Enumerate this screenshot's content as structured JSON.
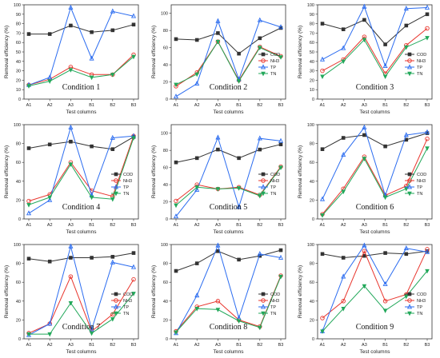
{
  "chart_data": [
    {
      "type": "line",
      "title": "Condition 1",
      "xlabel": "Test columns",
      "ylabel": "Removal efficiency (%)",
      "ylim": [
        0,
        100
      ],
      "yticks": [
        0,
        10,
        20,
        30,
        40,
        50,
        60,
        70,
        80,
        90,
        100
      ],
      "categories": [
        "A1",
        "A2",
        "A3",
        "B1",
        "B2",
        "B3"
      ],
      "legend_position": "none",
      "series": [
        {
          "name": "COD",
          "values": [
            69,
            69,
            78,
            71,
            73,
            79
          ]
        },
        {
          "name": "NH3",
          "values": [
            15,
            21,
            34,
            26,
            26,
            47
          ]
        },
        {
          "name": "TP",
          "values": [
            15,
            23,
            97,
            43,
            93,
            88
          ]
        },
        {
          "name": "TN",
          "values": [
            14,
            19,
            31,
            23,
            26,
            45
          ]
        }
      ]
    },
    {
      "type": "line",
      "title": "Condition 2",
      "xlabel": "Test columns",
      "ylabel": "Removal efficiency (%)",
      "ylim": [
        0,
        110
      ],
      "yticks": [
        0,
        20,
        40,
        60,
        80,
        100
      ],
      "categories": [
        "A1",
        "A2",
        "A3",
        "B1",
        "B2",
        "B3"
      ],
      "legend_position": "right",
      "series": [
        {
          "name": "COD",
          "values": [
            70,
            69,
            77,
            53,
            71,
            83
          ]
        },
        {
          "name": "NH3",
          "values": [
            15,
            31,
            67,
            22,
            61,
            50
          ]
        },
        {
          "name": "TP",
          "values": [
            3,
            18,
            91,
            23,
            92,
            84
          ]
        },
        {
          "name": "TN",
          "values": [
            17,
            29,
            67,
            21,
            60,
            49
          ]
        }
      ]
    },
    {
      "type": "line",
      "title": "Condition 3",
      "xlabel": "Test columns",
      "ylabel": "Removal efficiency (%)",
      "ylim": [
        0,
        100
      ],
      "yticks": [
        0,
        10,
        20,
        30,
        40,
        50,
        60,
        70,
        80,
        90,
        100
      ],
      "categories": [
        "A1",
        "A2",
        "A3",
        "B1",
        "B2",
        "B3"
      ],
      "legend_position": "right",
      "series": [
        {
          "name": "COD",
          "values": [
            80,
            74,
            84,
            58,
            78,
            90
          ]
        },
        {
          "name": "NH3",
          "values": [
            30,
            42,
            66,
            27,
            57,
            75
          ]
        },
        {
          "name": "TP",
          "values": [
            42,
            54,
            98,
            35,
            96,
            97
          ]
        },
        {
          "name": "TN",
          "values": [
            24,
            40,
            63,
            24,
            55,
            65
          ]
        }
      ]
    },
    {
      "type": "line",
      "title": "Condition 4",
      "xlabel": "Test columns",
      "ylabel": "Removal efficiency (%)",
      "ylim": [
        0,
        100
      ],
      "yticks": [
        0,
        20,
        40,
        60,
        80,
        100
      ],
      "categories": [
        "A1",
        "A2",
        "A3",
        "B1",
        "B2",
        "B3"
      ],
      "legend_position": "right",
      "series": [
        {
          "name": "COD",
          "values": [
            75,
            79,
            82,
            77,
            74,
            87
          ]
        },
        {
          "name": "NH3",
          "values": [
            19,
            26,
            60,
            30,
            24,
            88
          ]
        },
        {
          "name": "TP",
          "values": [
            6,
            20,
            97,
            25,
            86,
            88
          ]
        },
        {
          "name": "TN",
          "values": [
            15,
            23,
            58,
            23,
            21,
            86
          ]
        }
      ]
    },
    {
      "type": "line",
      "title": "Condition 5",
      "xlabel": "Test columns",
      "ylabel": "Removal efficiency (%)",
      "ylim": [
        0,
        110
      ],
      "yticks": [
        0,
        20,
        40,
        60,
        80,
        100
      ],
      "categories": [
        "A1",
        "A2",
        "A3",
        "B1",
        "B2",
        "B3"
      ],
      "legend_position": "right",
      "series": [
        {
          "name": "COD",
          "values": [
            66,
            71,
            81,
            71,
            81,
            87
          ]
        },
        {
          "name": "NH3",
          "values": [
            21,
            40,
            35,
            37,
            28,
            61
          ]
        },
        {
          "name": "TP",
          "values": [
            3,
            34,
            95,
            14,
            94,
            91
          ]
        },
        {
          "name": "TN",
          "values": [
            16,
            37,
            35,
            36,
            27,
            60
          ]
        }
      ]
    },
    {
      "type": "line",
      "title": "Condition 6",
      "xlabel": "Test columns",
      "ylabel": "Removal efficiency (%)",
      "ylim": [
        0,
        100
      ],
      "yticks": [
        0,
        20,
        40,
        60,
        80,
        100
      ],
      "categories": [
        "A1",
        "A2",
        "A3",
        "B1",
        "B2",
        "B3"
      ],
      "legend_position": "right",
      "series": [
        {
          "name": "COD",
          "values": [
            74,
            86,
            89,
            77,
            84,
            91
          ]
        },
        {
          "name": "NH3",
          "values": [
            5,
            32,
            66,
            25,
            35,
            85
          ]
        },
        {
          "name": "TP",
          "values": [
            21,
            68,
            97,
            25,
            89,
            92
          ]
        },
        {
          "name": "TN",
          "values": [
            4,
            29,
            64,
            23,
            32,
            75
          ]
        }
      ]
    },
    {
      "type": "line",
      "title": "Condition 7",
      "xlabel": "Test columns",
      "ylabel": "Removal efficiency (%)",
      "ylim": [
        0,
        100
      ],
      "yticks": [
        0,
        20,
        40,
        60,
        80,
        100
      ],
      "categories": [
        "A1",
        "A2",
        "A3",
        "B1",
        "B2",
        "B3"
      ],
      "legend_position": "right",
      "series": [
        {
          "name": "COD",
          "values": [
            85,
            82,
            86,
            86,
            87,
            91
          ]
        },
        {
          "name": "NH3",
          "values": [
            6,
            16,
            66,
            8,
            26,
            63
          ]
        },
        {
          "name": "TP",
          "values": [
            4,
            16,
            98,
            10,
            81,
            76
          ]
        },
        {
          "name": "TN",
          "values": [
            5,
            5,
            38,
            6,
            21,
            48
          ]
        }
      ]
    },
    {
      "type": "line",
      "title": "Condition 8",
      "xlabel": "Test columns",
      "ylabel": "Removal efficiency (%)",
      "ylim": [
        0,
        100
      ],
      "yticks": [
        0,
        20,
        40,
        60,
        80,
        100
      ],
      "categories": [
        "A1",
        "A2",
        "A3",
        "B1",
        "B2",
        "B3"
      ],
      "legend_position": "right",
      "series": [
        {
          "name": "COD",
          "values": [
            72,
            80,
            93,
            84,
            88,
            94
          ]
        },
        {
          "name": "NH3",
          "values": [
            8,
            34,
            40,
            20,
            13,
            67
          ]
        },
        {
          "name": "TP",
          "values": [
            6,
            46,
            99,
            22,
            90,
            86
          ]
        },
        {
          "name": "TN",
          "values": [
            7,
            32,
            31,
            19,
            12,
            66
          ]
        }
      ]
    },
    {
      "type": "line",
      "title": "Condition 9",
      "xlabel": "Test columns",
      "ylabel": "Removal efficiency (%)",
      "ylim": [
        0,
        100
      ],
      "yticks": [
        0,
        20,
        40,
        60,
        80,
        100
      ],
      "categories": [
        "A1",
        "A2",
        "A3",
        "B1",
        "B2",
        "B3"
      ],
      "legend_position": "right",
      "series": [
        {
          "name": "COD",
          "values": [
            90,
            86,
            88,
            91,
            90,
            93
          ]
        },
        {
          "name": "NH3",
          "values": [
            22,
            40,
            93,
            40,
            47,
            95
          ]
        },
        {
          "name": "TP",
          "values": [
            8,
            66,
            99,
            58,
            96,
            92
          ]
        },
        {
          "name": "TN",
          "values": [
            8,
            32,
            56,
            30,
            45,
            72
          ]
        }
      ]
    }
  ],
  "series_colors": {
    "COD": "#333333",
    "NH3": "#e8342c",
    "TP": "#2b6cf0",
    "TN": "#22a85a"
  },
  "series_markers": {
    "COD": "square",
    "NH3": "circle",
    "TP": "triangle-up",
    "TN": "triangle-down"
  }
}
